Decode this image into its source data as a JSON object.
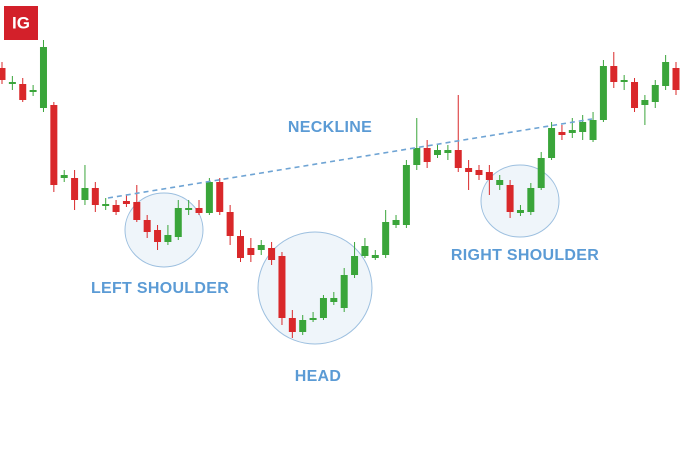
{
  "logo": "IG",
  "chart_data": {
    "type": "candlestick",
    "up_color": "#3aa53a",
    "down_color": "#d9282a",
    "open": [
      396,
      380,
      380,
      372,
      356,
      359,
      286,
      286,
      264,
      276,
      258,
      259,
      263,
      262,
      244,
      234,
      222,
      227,
      254,
      256,
      251,
      282,
      252,
      228,
      216,
      214,
      216,
      208,
      146,
      132,
      144,
      146,
      162,
      156,
      189,
      208,
      206,
      209,
      239,
      239,
      299,
      316,
      309,
      311,
      314,
      296,
      294,
      292,
      279,
      279,
      251,
      252,
      276,
      306,
      332,
      331,
      332,
      324,
      344,
      398,
      382,
      382,
      359,
      362,
      378,
      396
    ],
    "close": [
      384,
      382,
      364,
      374,
      417,
      279,
      289,
      264,
      276,
      259,
      260,
      252,
      260,
      244,
      232,
      222,
      229,
      256,
      256,
      251,
      282,
      252,
      228,
      206,
      209,
      219,
      204,
      146,
      132,
      144,
      146,
      166,
      166,
      189,
      208,
      218,
      209,
      242,
      244,
      299,
      316,
      302,
      314,
      314,
      296,
      292,
      289,
      284,
      284,
      252,
      254,
      276,
      306,
      336,
      329,
      334,
      342,
      344,
      398,
      382,
      384,
      356,
      364,
      379,
      402,
      374
    ],
    "high": [
      402,
      388,
      386,
      379,
      424,
      362,
      294,
      294,
      299,
      282,
      266,
      264,
      269,
      279,
      249,
      239,
      239,
      264,
      264,
      264,
      286,
      286,
      259,
      234,
      226,
      224,
      222,
      212,
      154,
      149,
      152,
      169,
      172,
      196,
      222,
      226,
      214,
      254,
      249,
      304,
      346,
      324,
      319,
      319,
      369,
      304,
      299,
      299,
      289,
      284,
      259,
      281,
      312,
      342,
      339,
      346,
      349,
      352,
      404,
      412,
      389,
      386,
      369,
      384,
      409,
      402
    ],
    "low": [
      380,
      374,
      362,
      368,
      352,
      272,
      282,
      254,
      259,
      252,
      254,
      249,
      257,
      242,
      226,
      214,
      219,
      224,
      249,
      249,
      249,
      249,
      219,
      202,
      202,
      209,
      199,
      139,
      126,
      129,
      142,
      144,
      159,
      152,
      186,
      206,
      204,
      206,
      236,
      236,
      294,
      296,
      306,
      304,
      292,
      274,
      284,
      269,
      274,
      246,
      248,
      249,
      274,
      304,
      324,
      326,
      324,
      322,
      342,
      376,
      374,
      352,
      339,
      356,
      374,
      369
    ],
    "annotations": [
      {
        "text": "NECKLINE"
      },
      {
        "text": "LEFT SHOULDER"
      },
      {
        "text": "HEAD"
      },
      {
        "text": "RIGHT SHOULDER"
      }
    ]
  }
}
